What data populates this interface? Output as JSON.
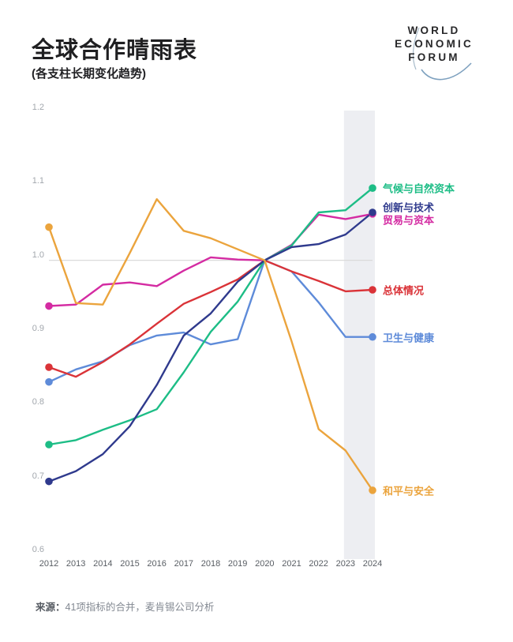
{
  "header": {
    "title": "全球合作晴雨表",
    "subtitle": "(各支柱长期变化趋势)",
    "logo_lines": [
      "WORLD",
      "ECONOMIC",
      "FORUM"
    ]
  },
  "chart_data": {
    "type": "line",
    "x": [
      2012,
      2013,
      2014,
      2015,
      2016,
      2017,
      2018,
      2019,
      2020,
      2021,
      2022,
      2023,
      2024
    ],
    "ylim": [
      0.6,
      1.2
    ],
    "yticks": [
      1.2,
      1.1,
      1.0,
      0.9,
      0.8,
      0.7,
      0.6
    ],
    "gridline_at": 1.0,
    "grid": "horizontal line at 1.0 only",
    "highlight_band_years": [
      2023,
      2024
    ],
    "highlight_band_color": "#edeef2",
    "legend_position": "labels at right ends of lines",
    "series": [
      {
        "name": "气候与自然资本",
        "color": "#1dbd86",
        "values": [
          0.75,
          0.756,
          0.77,
          0.783,
          0.798,
          0.848,
          0.903,
          0.944,
          1.0,
          1.02,
          1.065,
          1.068,
          1.098
        ]
      },
      {
        "name": "创新与技术",
        "color": "#2f3a8d",
        "values": [
          0.7,
          0.714,
          0.737,
          0.775,
          0.831,
          0.898,
          0.928,
          0.971,
          1.0,
          1.018,
          1.022,
          1.035,
          1.065
        ]
      },
      {
        "name": "贸易与资本",
        "color": "#d42ba2",
        "values": [
          0.938,
          0.94,
          0.967,
          0.97,
          0.965,
          0.986,
          1.004,
          1.001,
          1.0,
          1.021,
          1.062,
          1.056,
          1.063
        ]
      },
      {
        "name": "总体情况",
        "color": "#da3338",
        "values": [
          0.855,
          0.842,
          0.862,
          0.886,
          0.914,
          0.941,
          0.957,
          0.974,
          1.0,
          0.985,
          0.972,
          0.958,
          0.96
        ]
      },
      {
        "name": "卫生与健康",
        "color": "#5e8bd9",
        "values": [
          0.835,
          0.852,
          0.863,
          0.885,
          0.898,
          0.902,
          0.886,
          0.893,
          1.0,
          0.985,
          0.943,
          0.896,
          0.896
        ]
      },
      {
        "name": "和平与安全",
        "color": "#eba43d",
        "values": [
          1.045,
          0.942,
          0.94,
          1.01,
          1.083,
          1.04,
          1.03,
          1.015,
          1.0,
          0.89,
          0.771,
          0.742,
          0.688
        ]
      }
    ]
  },
  "footer": {
    "source_label": "来源：",
    "source_text": "41项指标的合并，麦肯锡公司分析"
  }
}
